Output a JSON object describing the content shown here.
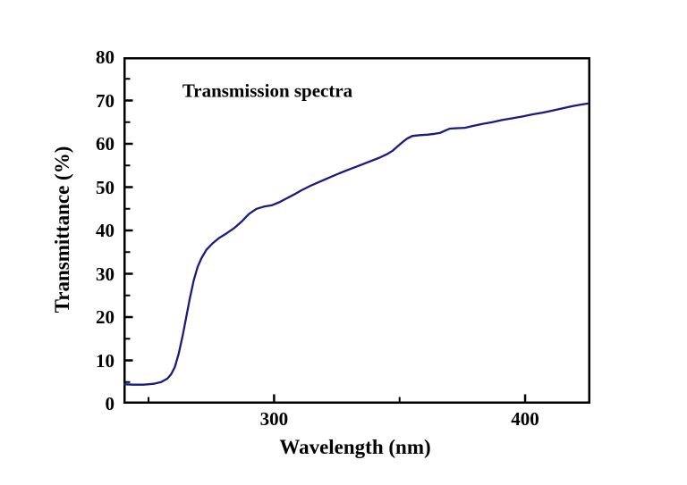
{
  "figure": {
    "annotation": "Transmission spectra",
    "xlabel": "Wavelength (nm)",
    "ylabel": "Transmittance (%)"
  },
  "colors": {
    "background": "#ffffff",
    "axis": "#000000",
    "text": "#000000",
    "line": "#1b1b7e"
  },
  "chart_data": {
    "type": "line",
    "title": "Transmission spectra",
    "xlabel": "Wavelength (nm)",
    "ylabel": "Transmittance (%)",
    "xlim": [
      240,
      426
    ],
    "ylim": [
      0,
      80
    ],
    "grid": false,
    "legend": "none",
    "x_major_ticks": [
      300,
      400
    ],
    "x_major_tick_labels": [
      "300",
      "400"
    ],
    "x_minor_ticks": [
      250,
      350
    ],
    "y_major_ticks": [
      0,
      10,
      20,
      30,
      40,
      50,
      60,
      70,
      80
    ],
    "y_major_tick_labels": [
      "0",
      "10",
      "20",
      "30",
      "40",
      "50",
      "60",
      "70",
      "80"
    ],
    "y_minor_ticks": [
      5,
      15,
      25,
      35,
      45,
      55,
      65,
      75
    ],
    "series": [
      {
        "name": "Transmission spectra",
        "x": [
          240,
          244,
          248,
          252,
          255,
          257.5,
          259,
          260.5,
          262,
          263.5,
          265,
          266.5,
          268,
          269.5,
          271,
          273,
          275.5,
          278,
          281,
          284,
          287,
          290,
          293,
          296,
          299,
          302,
          305,
          308,
          311,
          314.5,
          318,
          322,
          326,
          330,
          334,
          338,
          342,
          345,
          347,
          349,
          351,
          353,
          355,
          358,
          361,
          364,
          366,
          368,
          370,
          373,
          376,
          379,
          383,
          387,
          391,
          395,
          399,
          403,
          407,
          411,
          415,
          419,
          422,
          425
        ],
        "y": [
          4.5,
          4.4,
          4.4,
          4.6,
          5.0,
          5.8,
          6.8,
          8.5,
          11.5,
          15.5,
          20,
          24.5,
          28.5,
          31.5,
          33.5,
          35.5,
          37,
          38.2,
          39.3,
          40.5,
          42,
          43.8,
          45,
          45.5,
          45.8,
          46.5,
          47.4,
          48.3,
          49.3,
          50.3,
          51.2,
          52.2,
          53.2,
          54.1,
          55,
          55.9,
          56.8,
          57.6,
          58.3,
          59.3,
          60.3,
          61.2,
          61.8,
          62,
          62.1,
          62.3,
          62.5,
          63,
          63.5,
          63.6,
          63.7,
          64.1,
          64.6,
          65,
          65.5,
          65.9,
          66.3,
          66.8,
          67.2,
          67.7,
          68.2,
          68.7,
          69,
          69.3
        ]
      }
    ]
  }
}
